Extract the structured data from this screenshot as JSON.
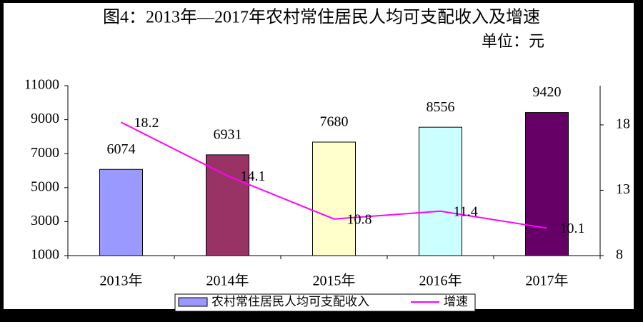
{
  "chart_data": {
    "type": "bar",
    "title": "图4：2013年—2017年农村常住居民人均可支配收入及增速",
    "subtitle": "单位：元",
    "categories": [
      "2013年",
      "2014年",
      "2015年",
      "2016年",
      "2017年"
    ],
    "series": [
      {
        "name": "农村常住居民人均可支配收入",
        "type": "bar",
        "colors": [
          "#9999ff",
          "#993366",
          "#ffffcc",
          "#ccffff",
          "#660066"
        ],
        "values": [
          6074,
          6931,
          7680,
          8556,
          9420
        ]
      },
      {
        "name": "增速",
        "type": "line",
        "axis": "y2",
        "color": "#ff00ff",
        "values": [
          18.2,
          14.1,
          10.8,
          11.4,
          10.1
        ]
      }
    ],
    "ylim": [
      1000,
      11000
    ],
    "yticks": [
      1000,
      3000,
      5000,
      7000,
      9000,
      11000
    ],
    "y2lim": [
      8,
      21
    ],
    "y2ticks": [
      8,
      13,
      18
    ],
    "legend": "bottom",
    "grid": false
  }
}
